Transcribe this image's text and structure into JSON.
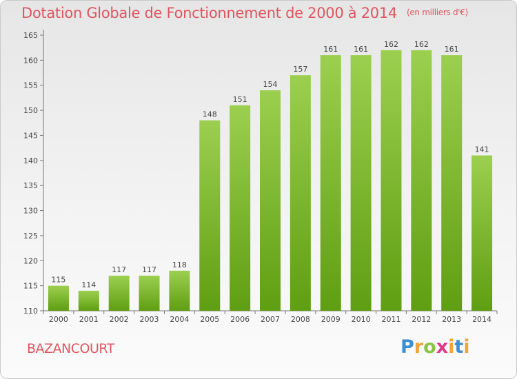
{
  "title": "Dotation Globale de Fonctionnement de 2000 à 2014",
  "unit": "(en milliers d'€)",
  "commune": "BAZANCOURT",
  "logo": "Proxiti",
  "colors": {
    "bar_top": "#9ccf4f",
    "bar_bottom": "#5f9e12",
    "title": "#e0555f"
  },
  "chart_data": {
    "type": "bar",
    "title": "Dotation Globale de Fonctionnement de 2000 à 2014",
    "categories": [
      "2000",
      "2001",
      "2002",
      "2003",
      "2004",
      "2005",
      "2006",
      "2007",
      "2008",
      "2009",
      "2010",
      "2011",
      "2012",
      "2013",
      "2014"
    ],
    "values": [
      115,
      114,
      117,
      117,
      118,
      148,
      151,
      154,
      157,
      161,
      161,
      162,
      162,
      161,
      141
    ],
    "ylim": [
      110,
      165
    ],
    "yticks": [
      110,
      115,
      120,
      125,
      130,
      135,
      140,
      145,
      150,
      155,
      160,
      165
    ],
    "grid": false,
    "data_labels": true
  }
}
